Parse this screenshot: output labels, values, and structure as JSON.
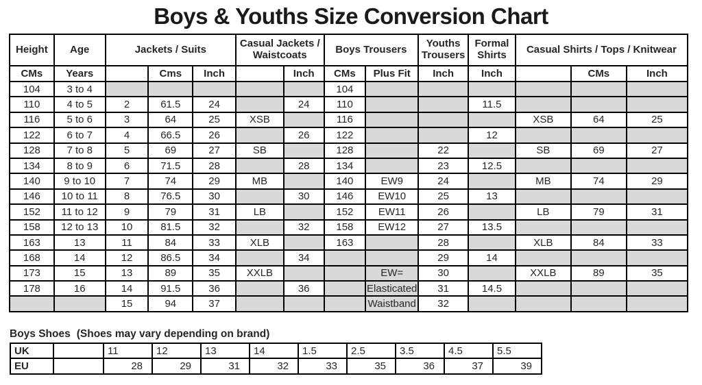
{
  "title": "Boys & Youths Size Conversion Chart",
  "colors": {
    "grid": "#000000",
    "cell_gray": "#d9d9d9",
    "text": "#262626"
  },
  "main_table": {
    "groups": [
      {
        "label": "Height",
        "sub": [
          "CMs"
        ]
      },
      {
        "label": "Age",
        "sub": [
          "Years"
        ]
      },
      {
        "label": "Jackets / Suits",
        "sub": [
          "",
          "Cms",
          "Inch"
        ]
      },
      {
        "label": "Casual Jackets / Waistcoats",
        "sub": [
          "",
          "Inch"
        ]
      },
      {
        "label": "Boys Trousers",
        "sub": [
          "CMs",
          "Plus Fit"
        ]
      },
      {
        "label": "Youths Trousers",
        "sub": [
          "Inch"
        ]
      },
      {
        "label": "Formal Shirts",
        "sub": [
          "Inch"
        ]
      },
      {
        "label": "Casual Shirts / Tops / Knitwear",
        "sub": [
          "",
          "CMs",
          "Inch"
        ]
      }
    ],
    "rows": [
      [
        "104",
        "3 to 4",
        null,
        null,
        null,
        null,
        null,
        "104",
        null,
        null,
        null,
        null,
        null,
        null
      ],
      [
        "110",
        "4 to 5",
        "2",
        "61.5",
        "24",
        null,
        "24",
        "110",
        null,
        null,
        "11.5",
        null,
        null,
        null
      ],
      [
        "116",
        "5 to 6",
        "3",
        "64",
        "25",
        "XSB",
        null,
        "116",
        null,
        null,
        null,
        "XSB",
        "64",
        "25"
      ],
      [
        "122",
        "6 to 7",
        "4",
        "66.5",
        "26",
        null,
        "26",
        "122",
        null,
        null,
        "12",
        null,
        null,
        null
      ],
      [
        "128",
        "7 to 8",
        "5",
        "69",
        "27",
        "SB",
        null,
        "128",
        null,
        "22",
        null,
        "SB",
        "69",
        "27"
      ],
      [
        "134",
        "8 to 9",
        "6",
        "71.5",
        "28",
        null,
        "28",
        "134",
        null,
        "23",
        "12.5",
        null,
        null,
        null
      ],
      [
        "140",
        "9 to 10",
        "7",
        "74",
        "29",
        "MB",
        null,
        "140",
        "EW9",
        "24",
        null,
        "MB",
        "74",
        "29"
      ],
      [
        "146",
        "10 to 11",
        "8",
        "76.5",
        "30",
        null,
        "30",
        "146",
        "EW10",
        "25",
        "13",
        null,
        null,
        null
      ],
      [
        "152",
        "11 to 12",
        "9",
        "79",
        "31",
        "LB",
        null,
        "152",
        "EW11",
        "26",
        null,
        "LB",
        "79",
        "31"
      ],
      [
        "158",
        "12 to 13",
        "10",
        "81.5",
        "32",
        null,
        "32",
        "158",
        "EW12",
        "27",
        "13.5",
        null,
        null,
        null
      ],
      [
        "163",
        "13",
        "11",
        "84",
        "33",
        "XLB",
        null,
        "163",
        null,
        "28",
        null,
        "XLB",
        "84",
        "33"
      ],
      [
        "168",
        "14",
        "12",
        "86.5",
        "34",
        null,
        "34",
        null,
        null,
        "29",
        "14",
        null,
        null,
        null
      ],
      [
        "173",
        "15",
        "13",
        "89",
        "35",
        "XXLB",
        null,
        null,
        {
          "text": "EW=",
          "gray": true
        },
        "30",
        null,
        "XXLB",
        "89",
        "35"
      ],
      [
        "178",
        "16",
        "14",
        "91.5",
        "36",
        null,
        "36",
        null,
        {
          "text": "Elasticated",
          "gray": true,
          "small": true
        },
        "31",
        "14.5",
        null,
        null,
        null
      ],
      [
        null,
        null,
        "15",
        "94",
        "37",
        null,
        null,
        null,
        {
          "text": "Waistband",
          "gray": true,
          "small": true
        },
        "32",
        null,
        null,
        null,
        null
      ]
    ]
  },
  "shoes_section": {
    "title": "Boys Shoes",
    "note": "(Shoes may vary depending on brand)",
    "rows": [
      {
        "label": "UK",
        "values": [
          "",
          "11",
          "12",
          "13",
          "14",
          "1.5",
          "2.5",
          "3.5",
          "4.5",
          "5.5"
        ]
      },
      {
        "label": "EU",
        "values": [
          "",
          "28",
          "29",
          "31",
          "32",
          "33",
          "35",
          "36",
          "37",
          "39"
        ]
      }
    ]
  }
}
